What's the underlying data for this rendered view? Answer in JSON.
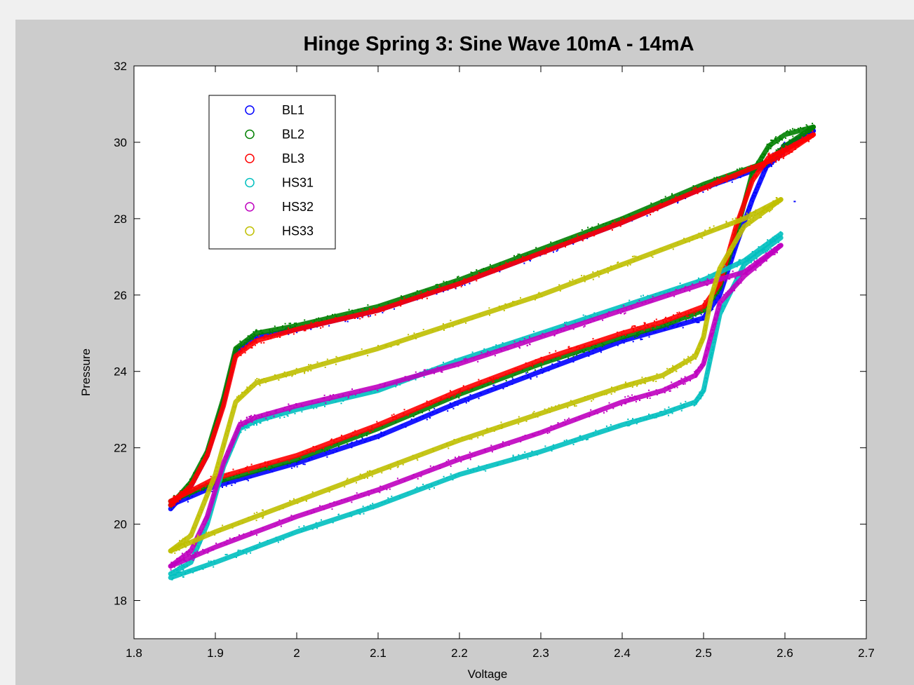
{
  "chart_data": {
    "type": "scatter",
    "title": "Hinge Spring 3: Sine Wave 10mA - 14mA",
    "xlabel": "Voltage",
    "ylabel": "Pressure",
    "xlim": [
      1.8,
      2.7
    ],
    "ylim": [
      17,
      32
    ],
    "xticks": [
      "1.8",
      "1.9",
      "2",
      "2.1",
      "2.2",
      "2.3",
      "2.4",
      "2.5",
      "2.6",
      "2.7"
    ],
    "yticks": [
      "18",
      "20",
      "22",
      "24",
      "26",
      "28",
      "30",
      "32"
    ],
    "grid": false,
    "legend_position": "top-left",
    "series": [
      {
        "name": "BL1",
        "color": "#0000ff",
        "upper": [
          [
            1.845,
            20.4
          ],
          [
            1.87,
            21.0
          ],
          [
            1.89,
            21.8
          ],
          [
            1.91,
            23.2
          ],
          [
            1.925,
            24.5
          ],
          [
            1.95,
            24.9
          ],
          [
            2.0,
            25.1
          ],
          [
            2.1,
            25.6
          ],
          [
            2.2,
            26.3
          ],
          [
            2.3,
            27.1
          ],
          [
            2.4,
            27.9
          ],
          [
            2.5,
            28.8
          ],
          [
            2.58,
            29.4
          ],
          [
            2.6,
            29.8
          ],
          [
            2.635,
            30.3
          ]
        ],
        "lower": [
          [
            1.845,
            20.5
          ],
          [
            1.9,
            21.0
          ],
          [
            2.0,
            21.6
          ],
          [
            2.1,
            22.3
          ],
          [
            2.2,
            23.2
          ],
          [
            2.3,
            24.0
          ],
          [
            2.4,
            24.8
          ],
          [
            2.45,
            25.1
          ],
          [
            2.5,
            25.4
          ],
          [
            2.52,
            26.0
          ],
          [
            2.54,
            27.3
          ],
          [
            2.56,
            28.5
          ],
          [
            2.58,
            29.5
          ],
          [
            2.6,
            29.9
          ],
          [
            2.635,
            30.3
          ]
        ]
      },
      {
        "name": "BL2",
        "color": "#008000",
        "upper": [
          [
            1.845,
            20.5
          ],
          [
            1.87,
            21.1
          ],
          [
            1.89,
            21.9
          ],
          [
            1.91,
            23.3
          ],
          [
            1.925,
            24.6
          ],
          [
            1.95,
            25.0
          ],
          [
            2.0,
            25.2
          ],
          [
            2.1,
            25.7
          ],
          [
            2.2,
            26.4
          ],
          [
            2.3,
            27.2
          ],
          [
            2.4,
            28.0
          ],
          [
            2.5,
            28.9
          ],
          [
            2.58,
            29.5
          ],
          [
            2.6,
            29.9
          ],
          [
            2.635,
            30.4
          ]
        ],
        "lower": [
          [
            1.845,
            20.6
          ],
          [
            1.9,
            21.1
          ],
          [
            2.0,
            21.7
          ],
          [
            2.1,
            22.5
          ],
          [
            2.2,
            23.4
          ],
          [
            2.3,
            24.2
          ],
          [
            2.4,
            24.9
          ],
          [
            2.45,
            25.2
          ],
          [
            2.5,
            25.6
          ],
          [
            2.52,
            26.2
          ],
          [
            2.54,
            27.6
          ],
          [
            2.56,
            29.2
          ],
          [
            2.58,
            29.9
          ],
          [
            2.6,
            30.2
          ],
          [
            2.635,
            30.4
          ]
        ]
      },
      {
        "name": "BL3",
        "color": "#ff0000",
        "upper": [
          [
            1.845,
            20.5
          ],
          [
            1.87,
            21.0
          ],
          [
            1.89,
            21.8
          ],
          [
            1.91,
            23.1
          ],
          [
            1.925,
            24.4
          ],
          [
            1.95,
            24.8
          ],
          [
            2.0,
            25.1
          ],
          [
            2.1,
            25.6
          ],
          [
            2.2,
            26.3
          ],
          [
            2.3,
            27.1
          ],
          [
            2.4,
            27.9
          ],
          [
            2.5,
            28.8
          ],
          [
            2.58,
            29.5
          ],
          [
            2.6,
            29.7
          ],
          [
            2.635,
            30.2
          ]
        ],
        "lower": [
          [
            1.845,
            20.6
          ],
          [
            1.9,
            21.2
          ],
          [
            2.0,
            21.8
          ],
          [
            2.1,
            22.6
          ],
          [
            2.2,
            23.5
          ],
          [
            2.3,
            24.3
          ],
          [
            2.4,
            25.0
          ],
          [
            2.45,
            25.3
          ],
          [
            2.5,
            25.7
          ],
          [
            2.52,
            26.3
          ],
          [
            2.54,
            27.8
          ],
          [
            2.56,
            29.0
          ],
          [
            2.58,
            29.6
          ],
          [
            2.6,
            29.8
          ],
          [
            2.635,
            30.2
          ]
        ]
      },
      {
        "name": "HS31",
        "color": "#00bfbf",
        "upper": [
          [
            1.845,
            18.7
          ],
          [
            1.87,
            19.0
          ],
          [
            1.89,
            20.0
          ],
          [
            1.91,
            21.5
          ],
          [
            1.93,
            22.5
          ],
          [
            1.95,
            22.7
          ],
          [
            2.0,
            23.0
          ],
          [
            2.1,
            23.5
          ],
          [
            2.2,
            24.3
          ],
          [
            2.3,
            25.0
          ],
          [
            2.4,
            25.7
          ],
          [
            2.5,
            26.4
          ],
          [
            2.55,
            26.9
          ],
          [
            2.595,
            27.6
          ]
        ],
        "lower": [
          [
            1.845,
            18.6
          ],
          [
            1.9,
            19.0
          ],
          [
            2.0,
            19.8
          ],
          [
            2.1,
            20.5
          ],
          [
            2.2,
            21.3
          ],
          [
            2.3,
            21.9
          ],
          [
            2.4,
            22.6
          ],
          [
            2.45,
            22.9
          ],
          [
            2.49,
            23.2
          ],
          [
            2.5,
            23.5
          ],
          [
            2.51,
            24.5
          ],
          [
            2.52,
            25.5
          ],
          [
            2.55,
            26.8
          ],
          [
            2.595,
            27.5
          ]
        ]
      },
      {
        "name": "HS32",
        "color": "#bf00bf",
        "upper": [
          [
            1.845,
            18.9
          ],
          [
            1.87,
            19.3
          ],
          [
            1.89,
            20.2
          ],
          [
            1.91,
            21.6
          ],
          [
            1.93,
            22.6
          ],
          [
            1.95,
            22.8
          ],
          [
            2.0,
            23.1
          ],
          [
            2.1,
            23.6
          ],
          [
            2.2,
            24.2
          ],
          [
            2.3,
            24.9
          ],
          [
            2.4,
            25.6
          ],
          [
            2.5,
            26.3
          ],
          [
            2.55,
            26.6
          ],
          [
            2.595,
            27.3
          ]
        ],
        "lower": [
          [
            1.845,
            18.9
          ],
          [
            1.9,
            19.4
          ],
          [
            2.0,
            20.2
          ],
          [
            2.1,
            20.9
          ],
          [
            2.2,
            21.7
          ],
          [
            2.3,
            22.4
          ],
          [
            2.4,
            23.2
          ],
          [
            2.45,
            23.5
          ],
          [
            2.49,
            23.9
          ],
          [
            2.5,
            24.2
          ],
          [
            2.51,
            25.0
          ],
          [
            2.52,
            25.8
          ],
          [
            2.55,
            26.5
          ],
          [
            2.595,
            27.3
          ]
        ]
      },
      {
        "name": "HS33",
        "color": "#bfbf00",
        "upper": [
          [
            1.845,
            19.3
          ],
          [
            1.87,
            19.7
          ],
          [
            1.9,
            21.3
          ],
          [
            1.925,
            23.2
          ],
          [
            1.95,
            23.7
          ],
          [
            2.0,
            24.0
          ],
          [
            2.1,
            24.6
          ],
          [
            2.2,
            25.3
          ],
          [
            2.3,
            26.0
          ],
          [
            2.4,
            26.8
          ],
          [
            2.5,
            27.6
          ],
          [
            2.55,
            28.0
          ],
          [
            2.595,
            28.5
          ]
        ],
        "lower": [
          [
            1.845,
            19.3
          ],
          [
            1.9,
            19.8
          ],
          [
            2.0,
            20.6
          ],
          [
            2.1,
            21.4
          ],
          [
            2.2,
            22.2
          ],
          [
            2.3,
            22.9
          ],
          [
            2.4,
            23.6
          ],
          [
            2.45,
            23.9
          ],
          [
            2.49,
            24.4
          ],
          [
            2.5,
            24.9
          ],
          [
            2.51,
            26.0
          ],
          [
            2.52,
            26.7
          ],
          [
            2.55,
            27.8
          ],
          [
            2.595,
            28.5
          ]
        ]
      }
    ],
    "stray_points": [
      {
        "series": "BL1",
        "x": 2.612,
        "y": 28.45
      }
    ]
  }
}
